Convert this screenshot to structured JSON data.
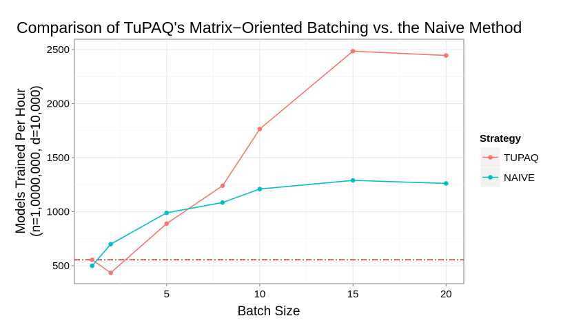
{
  "chart_data": {
    "type": "line",
    "title": "Comparison of TuPAQ's Matrix−Oriented Batching vs. the Naive Method",
    "xlabel": "Batch Size",
    "ylabel_line1": "Models Trained Per Hour",
    "ylabel_line2": "(n=1,0000,000, d=10,000)",
    "xlim": [
      0.05,
      20.95
    ],
    "ylim": [
      335,
      2595
    ],
    "x_ticks": [
      5,
      10,
      15,
      20
    ],
    "y_ticks": [
      500,
      1000,
      1500,
      2000,
      2500
    ],
    "grid": true,
    "legend": {
      "title": "Strategy",
      "position": "right"
    },
    "series": [
      {
        "name": "TUPAQ",
        "color": "#F8766D",
        "x": [
          1,
          2,
          5,
          8,
          10,
          15,
          20
        ],
        "y": [
          555,
          435,
          890,
          1240,
          1765,
          2485,
          2445
        ]
      },
      {
        "name": "NAIVE",
        "color": "#00BFC4",
        "x": [
          1,
          2,
          5,
          8,
          10,
          15,
          20
        ],
        "y": [
          500,
          700,
          990,
          1085,
          1210,
          1290,
          1262
        ]
      }
    ],
    "reference_line": {
      "y": 555,
      "color": "#B2352C",
      "style": "dashdot"
    }
  }
}
